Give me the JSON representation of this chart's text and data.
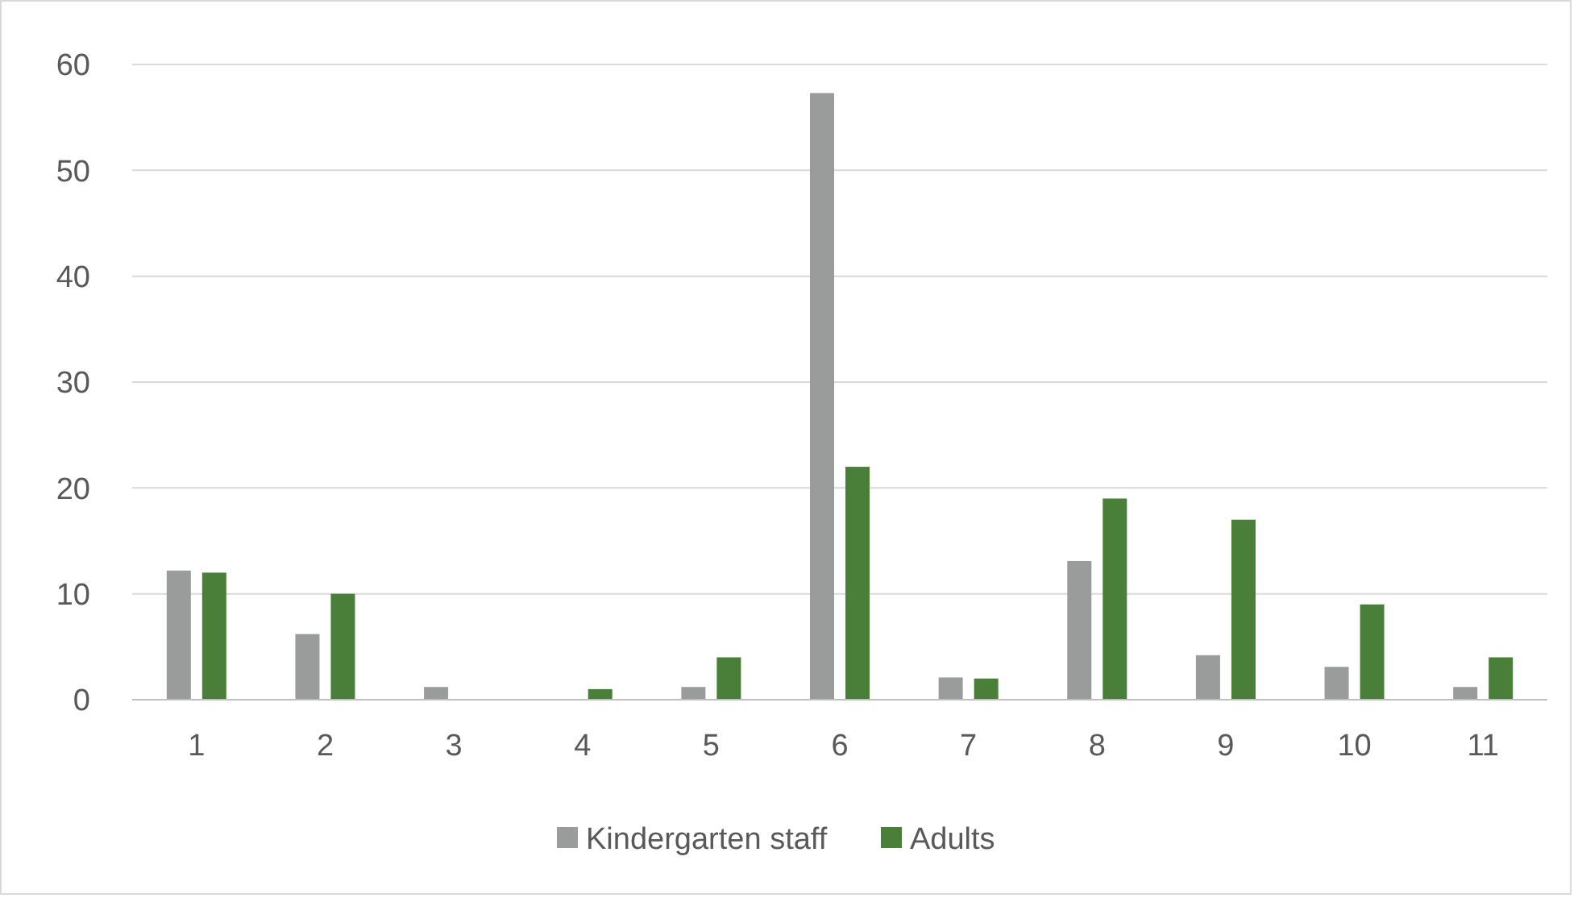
{
  "chart_data": {
    "type": "bar",
    "categories": [
      "1",
      "2",
      "3",
      "4",
      "5",
      "6",
      "7",
      "8",
      "9",
      "10",
      "11"
    ],
    "series": [
      {
        "name": "Kindergarten staff",
        "color": "#9a9c9b",
        "values": [
          12.2,
          6.2,
          1.2,
          0,
          1.2,
          57.3,
          2.1,
          13.1,
          4.2,
          3.1,
          1.2
        ]
      },
      {
        "name": "Adults",
        "color": "#4a7f3a",
        "values": [
          12,
          10,
          0,
          1,
          4,
          22,
          2,
          19,
          17,
          9,
          4
        ]
      }
    ],
    "ylim": [
      0,
      60
    ],
    "yticks": [
      0,
      10,
      20,
      30,
      40,
      50,
      60
    ],
    "grid": "y",
    "legend": "bottom"
  }
}
